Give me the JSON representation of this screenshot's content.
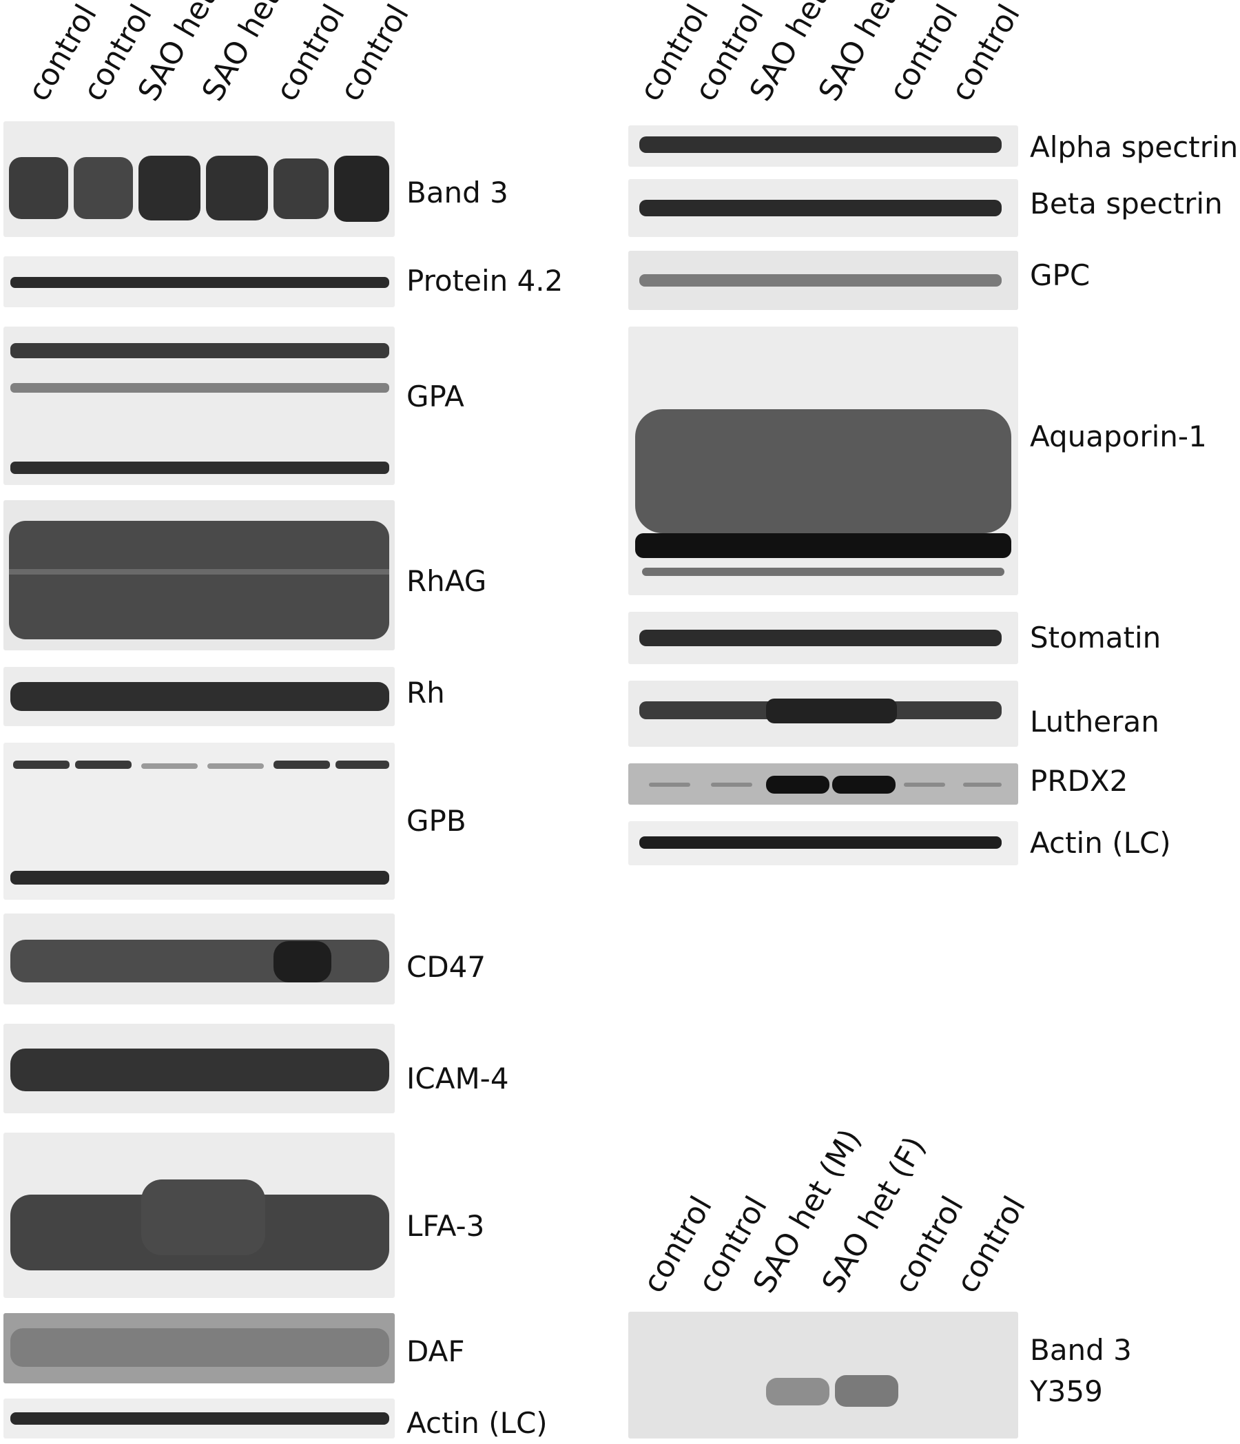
{
  "left_panel": {
    "lanes": [
      "control",
      "control",
      "SAO het",
      "SAO het",
      "control",
      "control"
    ],
    "blots": [
      {
        "protein": "Band 3"
      },
      {
        "protein": "Protein 4.2"
      },
      {
        "protein": "GPA"
      },
      {
        "protein": "RhAG"
      },
      {
        "protein": "Rh"
      },
      {
        "protein": "GPB"
      },
      {
        "protein": "CD47"
      },
      {
        "protein": "ICAM-4"
      },
      {
        "protein": "LFA-3"
      },
      {
        "protein": "DAF"
      },
      {
        "protein": "Actin (LC)"
      }
    ]
  },
  "right_panel": {
    "lanes": [
      "control",
      "control",
      "SAO het",
      "SAO het",
      "control",
      "control"
    ],
    "blots": [
      {
        "protein": "Alpha spectrin"
      },
      {
        "protein": "Beta spectrin"
      },
      {
        "protein": "GPC"
      },
      {
        "protein": "Aquaporin-1"
      },
      {
        "protein": "Stomatin"
      },
      {
        "protein": "Lutheran"
      },
      {
        "protein": "PRDX2"
      },
      {
        "protein": "Actin (LC)"
      }
    ]
  },
  "bottom_panel": {
    "lanes": [
      "control",
      "control",
      "SAO het (M)",
      "SAO het (F)",
      "control",
      "control"
    ],
    "label_line1": "Band 3",
    "label_line2": "Y359"
  }
}
